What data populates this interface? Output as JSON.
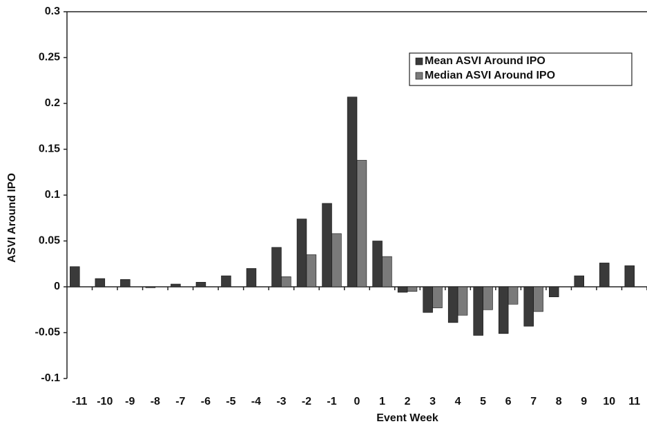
{
  "chart_data": {
    "type": "bar",
    "x_label": "Event Week",
    "y_label": "ASVI Around IPO",
    "categories": [
      "-11",
      "-10",
      "-9",
      "-8",
      "-7",
      "-6",
      "-5",
      "-4",
      "-3",
      "-2",
      "-1",
      "0",
      "1",
      "2",
      "3",
      "4",
      "5",
      "6",
      "7",
      "8",
      "9",
      "10",
      "11"
    ],
    "series": [
      {
        "name": "Mean ASVI Around IPO",
        "color": "#3a3a3a",
        "values": [
          0.022,
          0.009,
          0.008,
          -0.001,
          0.003,
          0.005,
          0.012,
          0.02,
          0.043,
          0.074,
          0.091,
          0.207,
          0.05,
          -0.006,
          -0.028,
          -0.039,
          -0.053,
          -0.051,
          -0.043,
          -0.011,
          0.012,
          0.026,
          0.023
        ]
      },
      {
        "name": "Median ASVI Around IPO",
        "color": "#7a7a7a",
        "values": [
          0,
          0,
          0,
          0,
          0,
          0,
          0,
          0,
          0.011,
          0.035,
          0.058,
          0.138,
          0.033,
          -0.005,
          -0.023,
          -0.031,
          -0.025,
          -0.019,
          -0.027,
          0,
          0,
          0,
          0
        ]
      }
    ],
    "ylim": [
      -0.1,
      0.3
    ],
    "yticks": [
      0.3,
      0.25,
      0.2,
      0.15,
      0.1,
      0.05,
      0,
      -0.05,
      -0.1
    ],
    "grid": false,
    "legend": "upper right"
  }
}
